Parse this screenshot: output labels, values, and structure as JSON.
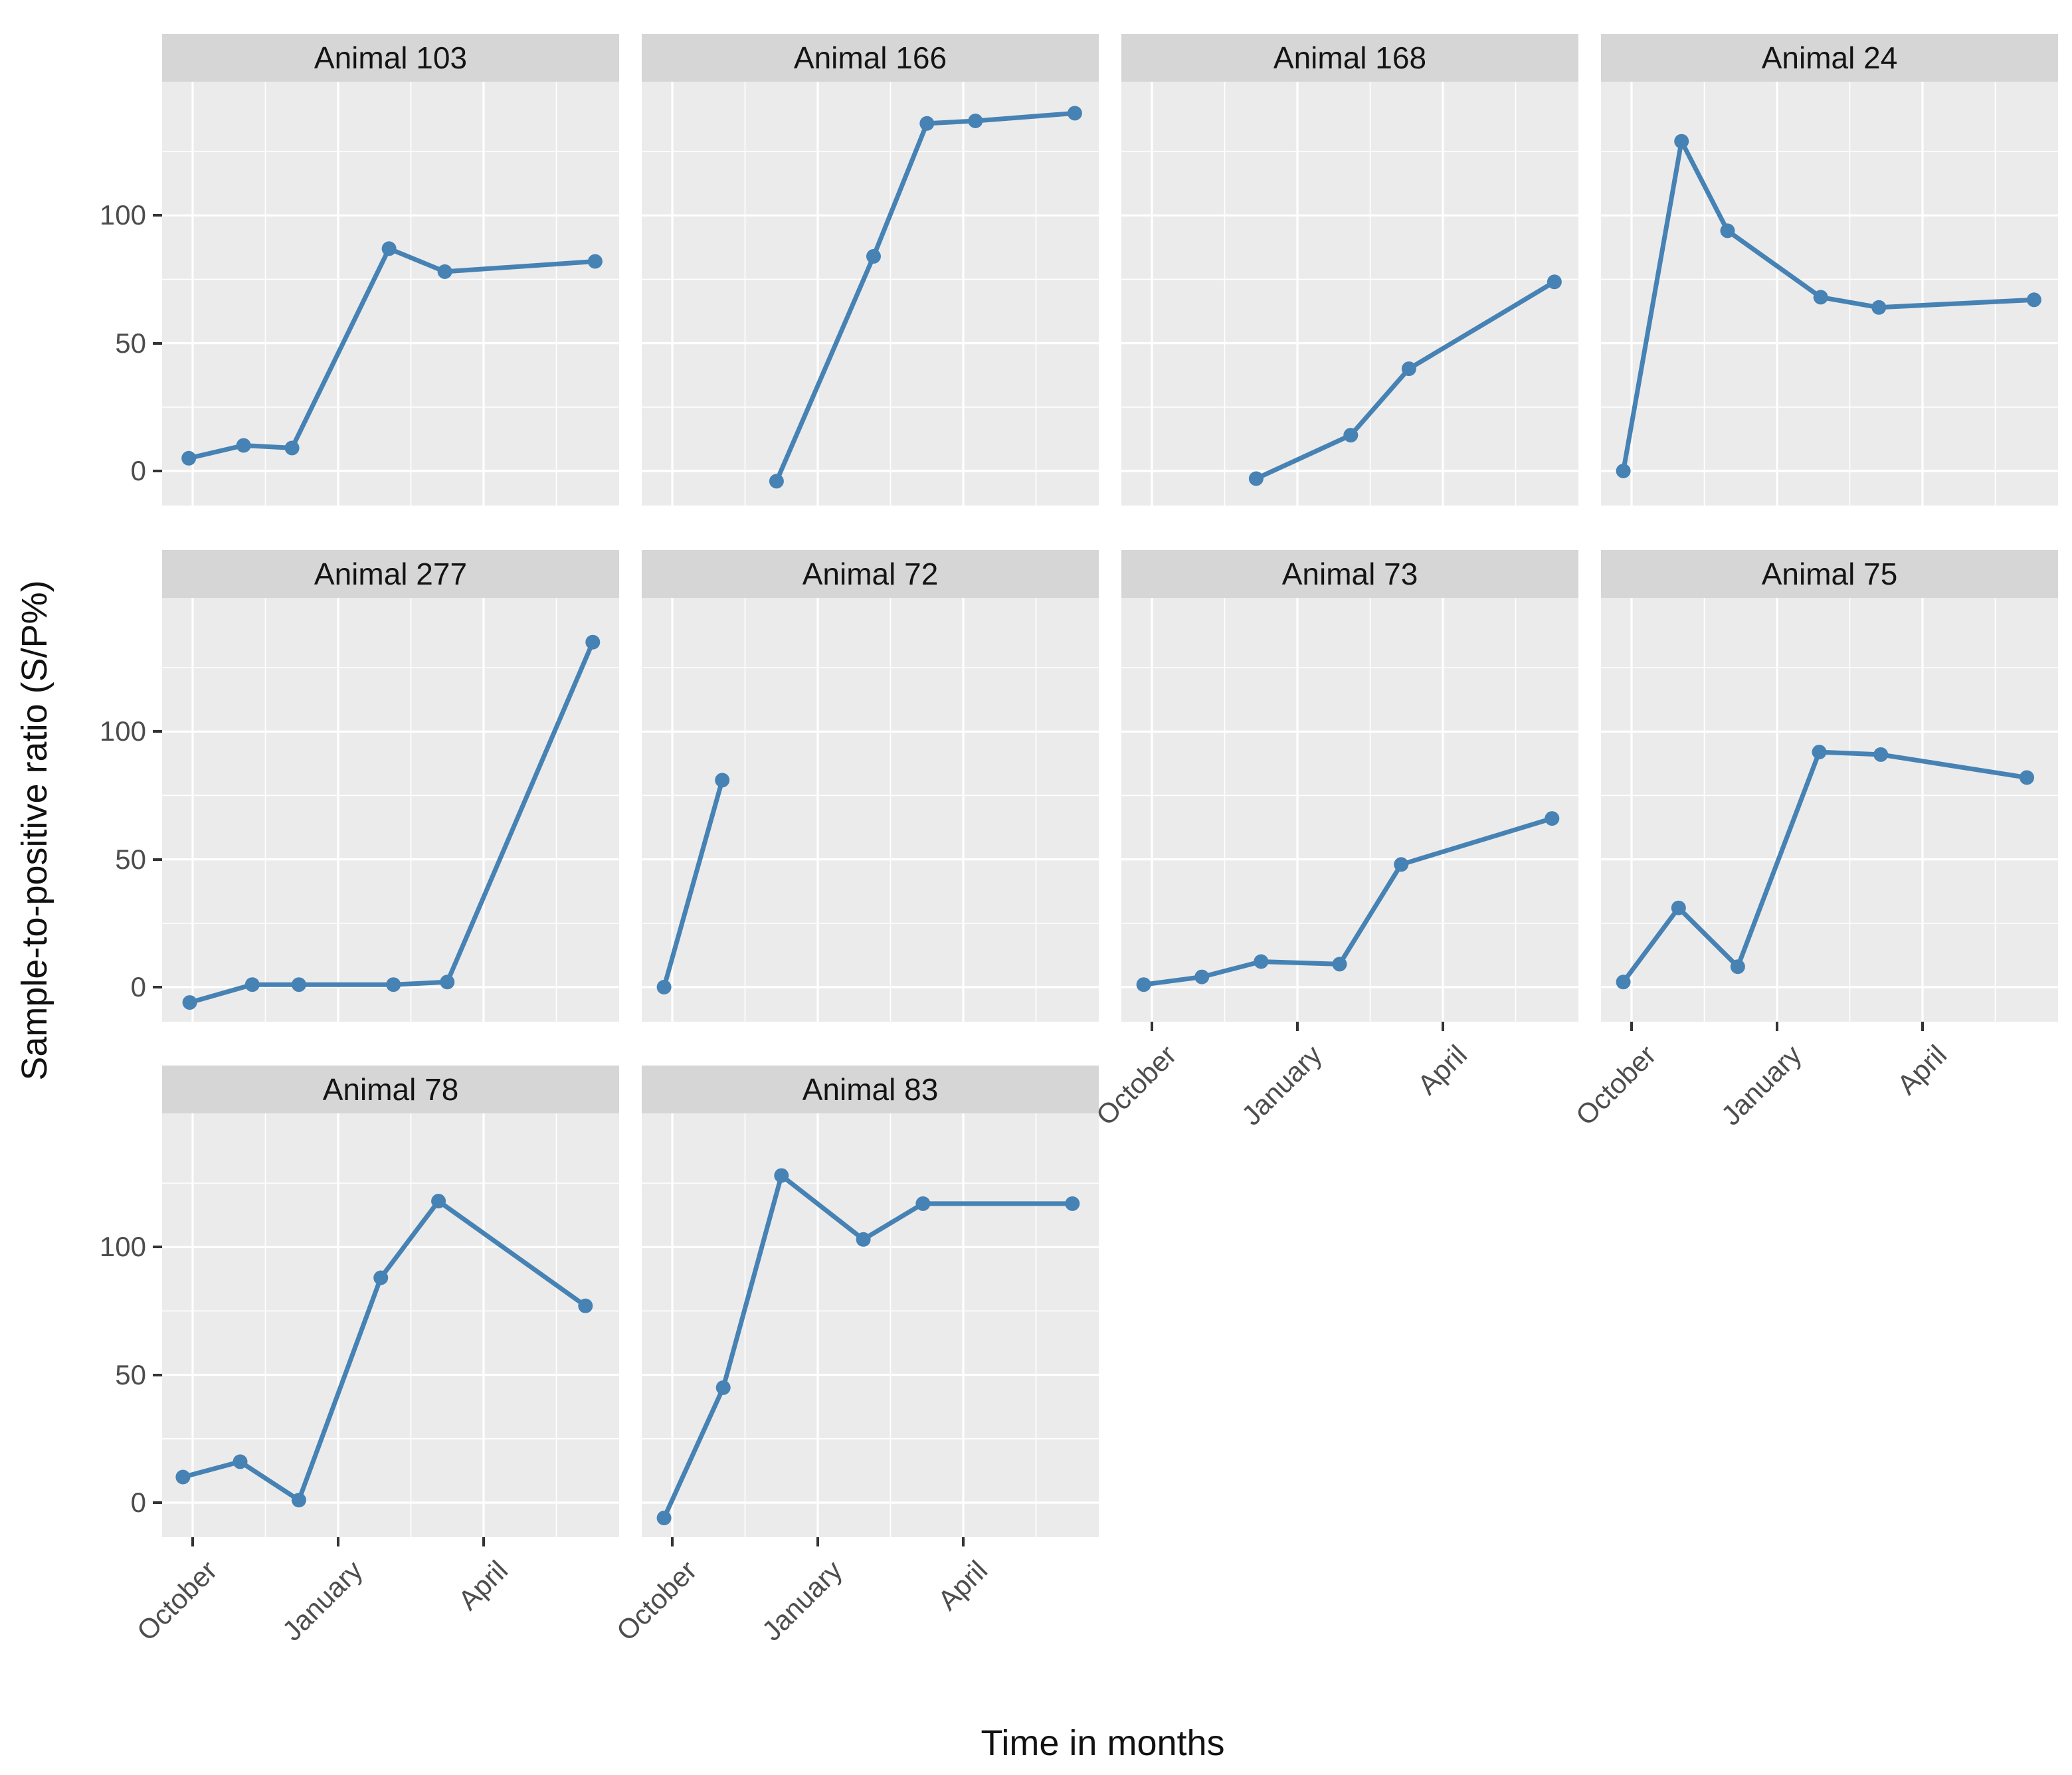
{
  "figure": {
    "y_axis_title": "Sample-to-positive ratio (S/P%)",
    "x_axis_title": "Time in months",
    "colors": {
      "line": "#4682b4",
      "panel_background": "#ebebeb",
      "strip_background": "#d6d6d6",
      "gridline": "#ffffff",
      "axis_text": "#4d4d4d",
      "tick": "#333333"
    }
  },
  "chart_data": {
    "type": "line",
    "title": "",
    "facet_by": "Animal",
    "xlabel": "Time in months",
    "ylabel": "Sample-to-positive ratio (S/P%)",
    "x_unit": "months since October (0 = October, 3 = January, 6 = April)",
    "x_tick_months": [
      0,
      3,
      6
    ],
    "x_tick_labels": [
      "October",
      "January",
      "April"
    ],
    "x_minor_months": [
      1.5,
      4.5,
      7.5
    ],
    "y_ticks": [
      0,
      50,
      100
    ],
    "y_minor_ticks": [
      25,
      75,
      125
    ],
    "ylim": [
      -13.5,
      152
    ],
    "xlim": [
      -0.63,
      8.8
    ],
    "grid": {
      "major": true,
      "minor": true,
      "legend": "none"
    },
    "panels": [
      {
        "label": "Animal 103",
        "points": [
          [
            -0.08,
            5
          ],
          [
            1.05,
            10
          ],
          [
            2.05,
            9
          ],
          [
            4.05,
            87
          ],
          [
            5.2,
            78
          ],
          [
            8.3,
            82
          ]
        ]
      },
      {
        "label": "Animal 166",
        "points": [
          [
            2.15,
            -4
          ],
          [
            4.15,
            84
          ],
          [
            5.25,
            136
          ],
          [
            6.25,
            137
          ],
          [
            8.3,
            140
          ]
        ]
      },
      {
        "label": "Animal 168",
        "points": [
          [
            2.15,
            -3
          ],
          [
            4.1,
            14
          ],
          [
            5.3,
            40
          ],
          [
            8.3,
            74
          ]
        ]
      },
      {
        "label": "Animal 24",
        "points": [
          [
            -0.17,
            0
          ],
          [
            1.03,
            129
          ],
          [
            1.98,
            94
          ],
          [
            3.9,
            68
          ],
          [
            5.1,
            64
          ],
          [
            8.3,
            67
          ]
        ]
      },
      {
        "label": "Animal 277",
        "points": [
          [
            -0.06,
            -6
          ],
          [
            1.23,
            1
          ],
          [
            2.19,
            1
          ],
          [
            4.14,
            1
          ],
          [
            5.25,
            2
          ],
          [
            8.25,
            135
          ]
        ]
      },
      {
        "label": "Animal 72",
        "points": [
          [
            -0.17,
            0
          ],
          [
            1.03,
            81
          ]
        ]
      },
      {
        "label": "Animal 73",
        "points": [
          [
            -0.17,
            1
          ],
          [
            1.03,
            4
          ],
          [
            2.25,
            10
          ],
          [
            3.87,
            9
          ],
          [
            5.14,
            48
          ],
          [
            8.25,
            66
          ]
        ]
      },
      {
        "label": "Animal 75",
        "points": [
          [
            -0.17,
            2
          ],
          [
            0.97,
            31
          ],
          [
            2.19,
            8
          ],
          [
            3.87,
            92
          ],
          [
            5.14,
            91
          ],
          [
            8.15,
            82
          ]
        ]
      },
      {
        "label": "Animal 78",
        "points": [
          [
            -0.2,
            10
          ],
          [
            0.98,
            16
          ],
          [
            2.19,
            1
          ],
          [
            3.88,
            88
          ],
          [
            5.07,
            118
          ],
          [
            8.1,
            77
          ]
        ]
      },
      {
        "label": "Animal 83",
        "points": [
          [
            -0.17,
            -6
          ],
          [
            1.05,
            45
          ],
          [
            2.25,
            128
          ],
          [
            3.94,
            103
          ],
          [
            5.17,
            117
          ],
          [
            8.25,
            117
          ]
        ]
      }
    ]
  }
}
